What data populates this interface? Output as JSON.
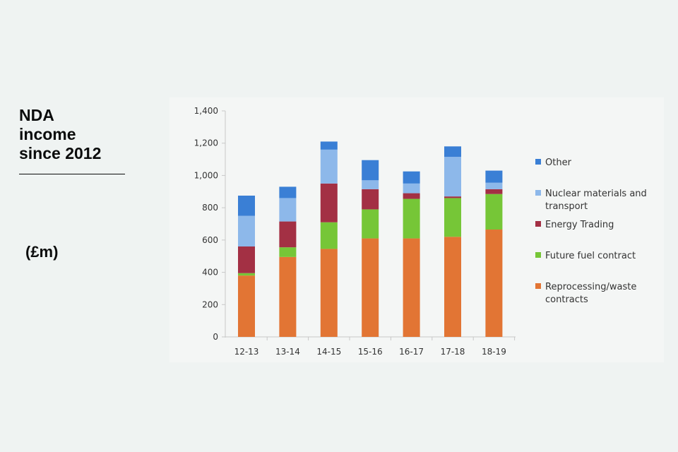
{
  "headline": {
    "lines": [
      "NDA",
      "income",
      "since 2012"
    ],
    "unit": "(£m)"
  },
  "colors": {
    "other": "#3a7fd5",
    "nuclear": "#8db8ea",
    "energy": "#a33044",
    "fuel": "#76c637",
    "reprocessing": "#e27534",
    "axis": "#c8c8c8"
  },
  "chart_data": {
    "type": "bar",
    "stacked": true,
    "title": "NDA income since 2012",
    "ylabel": "(£m)",
    "xlabel": "",
    "ylim": [
      0,
      1400
    ],
    "yticks": [
      "0",
      "200",
      "400",
      "600",
      "800",
      "1,000",
      "1,200",
      "1,400"
    ],
    "ytick_values": [
      0,
      200,
      400,
      600,
      800,
      1000,
      1200,
      1400
    ],
    "categories": [
      "12-13",
      "13-14",
      "14-15",
      "15-16",
      "16-17",
      "17-18",
      "18-19"
    ],
    "legend_position": "right",
    "series": [
      {
        "key": "reprocessing",
        "name": "Reprocessing/waste contracts",
        "legend_lines": [
          "Reprocessing/waste",
          "contracts"
        ],
        "color": "#e27534",
        "values": [
          380,
          495,
          545,
          610,
          610,
          620,
          665
        ]
      },
      {
        "key": "fuel",
        "name": "Future fuel contract",
        "legend_lines": [
          "Future fuel contract"
        ],
        "color": "#76c637",
        "values": [
          15,
          60,
          165,
          180,
          245,
          240,
          220
        ]
      },
      {
        "key": "energy",
        "name": "Energy Trading",
        "legend_lines": [
          "Energy Trading"
        ],
        "color": "#a33044",
        "values": [
          165,
          160,
          240,
          125,
          35,
          10,
          30
        ]
      },
      {
        "key": "nuclear",
        "name": "Nuclear materials and transport",
        "legend_lines": [
          "Nuclear materials and",
          "transport"
        ],
        "color": "#8db8ea",
        "values": [
          190,
          145,
          210,
          55,
          60,
          245,
          40
        ]
      },
      {
        "key": "other",
        "name": "Other",
        "legend_lines": [
          "Other"
        ],
        "color": "#3a7fd5",
        "values": [
          125,
          70,
          50,
          125,
          75,
          65,
          75
        ]
      }
    ],
    "legend_order": [
      "other",
      "nuclear",
      "energy",
      "fuel",
      "reprocessing"
    ]
  }
}
